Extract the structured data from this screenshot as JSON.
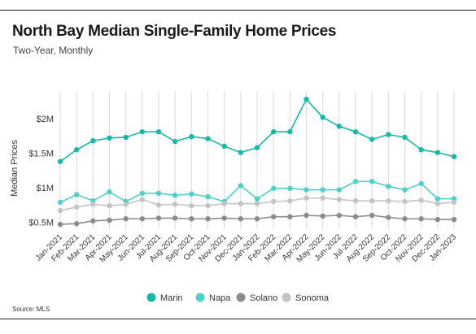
{
  "header": {
    "title": "North Bay Median Single-Family Home Prices",
    "subtitle": "Two-Year, Monthly"
  },
  "footer": {
    "source": "Source: MLS"
  },
  "chart_data": {
    "type": "line",
    "title": "North Bay Median Single-Family Home Prices",
    "subtitle": "Two-Year, Monthly",
    "xlabel": "",
    "ylabel": "Median Prices",
    "ylim": [
      400000,
      2400000
    ],
    "yticks": [
      500000,
      1000000,
      1500000,
      2000000
    ],
    "ytick_labels": [
      "$0.5M",
      "$1M",
      "$1.5M",
      "$2M"
    ],
    "grid": "vertical",
    "legend_position": "bottom",
    "x": [
      "Jan-2021",
      "Feb-2021",
      "Mar-2021",
      "Apr-2021",
      "May-2021",
      "Jun-2021",
      "Jul-2021",
      "Aug-2021",
      "Sep-2021",
      "Oct-2021",
      "Nov-2021",
      "Dec-2021",
      "Jan-2022",
      "Feb-2022",
      "Mar-2022",
      "Apr-2022",
      "May-2022",
      "Jun-2022",
      "Jul-2022",
      "Aug-2022",
      "Sep-2022",
      "Oct-2022",
      "Nov-2022",
      "Dec-2022",
      "Jan-2023"
    ],
    "series": [
      {
        "name": "Marin",
        "color": "#17b8a6",
        "values": [
          1380000,
          1550000,
          1680000,
          1720000,
          1730000,
          1810000,
          1810000,
          1670000,
          1740000,
          1710000,
          1600000,
          1510000,
          1580000,
          1810000,
          1810000,
          2280000,
          2020000,
          1890000,
          1810000,
          1700000,
          1770000,
          1730000,
          1550000,
          1510000,
          1450000
        ]
      },
      {
        "name": "Napa",
        "color": "#4fd0c9",
        "values": [
          790000,
          900000,
          810000,
          940000,
          800000,
          920000,
          920000,
          890000,
          910000,
          870000,
          800000,
          1030000,
          840000,
          990000,
          990000,
          970000,
          970000,
          970000,
          1090000,
          1090000,
          1020000,
          970000,
          1060000,
          840000,
          840000
        ]
      },
      {
        "name": "Solano",
        "color": "#8c8c8c",
        "values": [
          470000,
          480000,
          520000,
          530000,
          550000,
          550000,
          560000,
          560000,
          550000,
          550000,
          560000,
          550000,
          550000,
          580000,
          580000,
          600000,
          590000,
          600000,
          580000,
          600000,
          570000,
          550000,
          550000,
          540000,
          540000
        ]
      },
      {
        "name": "Sonoma",
        "color": "#c4c4c4",
        "values": [
          670000,
          720000,
          760000,
          740000,
          760000,
          830000,
          750000,
          760000,
          740000,
          740000,
          770000,
          770000,
          770000,
          800000,
          810000,
          850000,
          850000,
          830000,
          810000,
          810000,
          810000,
          800000,
          820000,
          770000,
          790000
        ]
      }
    ]
  }
}
